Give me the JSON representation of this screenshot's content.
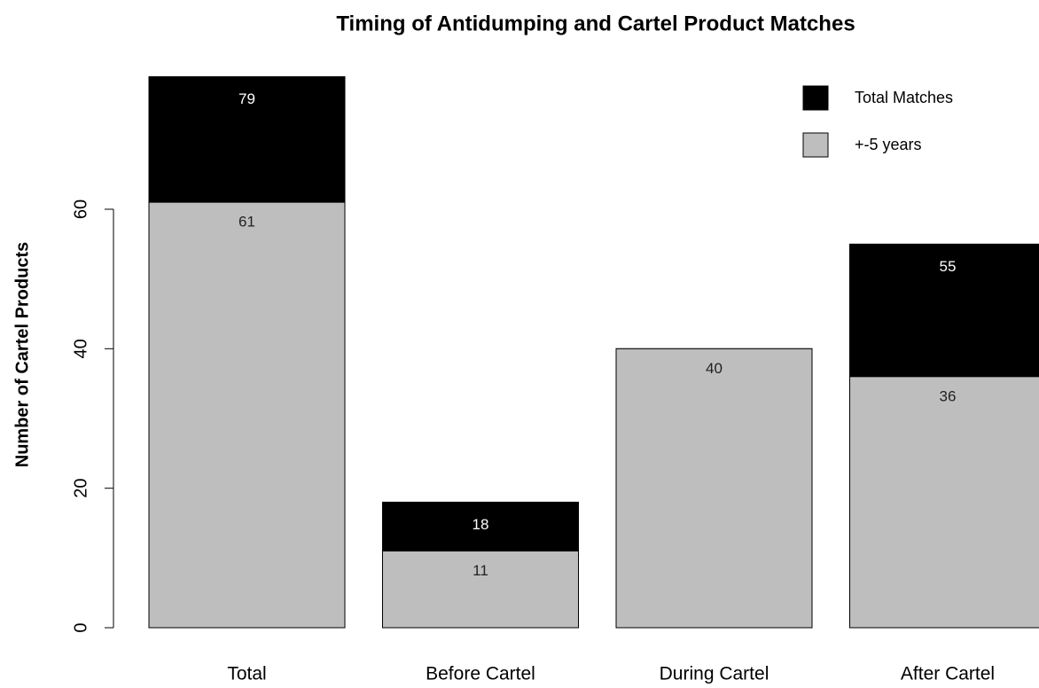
{
  "chart_data": {
    "type": "bar",
    "title": "Timing of Antidumping and Cartel Product Matches",
    "ylabel": "Number of Cartel Products",
    "categories": [
      "Total",
      "Before Cartel",
      "During Cartel",
      "After Cartel"
    ],
    "series": [
      {
        "name": "Total Matches",
        "color": "#000000",
        "values": [
          79,
          18,
          40,
          55
        ]
      },
      {
        "name": "+-5 years",
        "color": "#bebebe",
        "values": [
          61,
          11,
          40,
          36
        ]
      }
    ],
    "ylim": [
      0,
      80
    ],
    "yticks": [
      0,
      20,
      40,
      60
    ],
    "legend": "top-right"
  }
}
